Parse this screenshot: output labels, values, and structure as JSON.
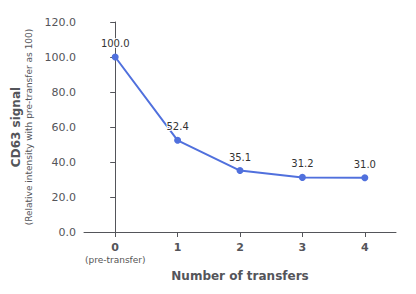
{
  "chart_data": {
    "type": "line",
    "x": [
      0,
      1,
      2,
      3,
      4
    ],
    "values": [
      100.0,
      52.4,
      35.1,
      31.2,
      31.0
    ],
    "value_labels": [
      "100.0",
      "52.4",
      "35.1",
      "31.2",
      "31.0"
    ],
    "data_labels": true,
    "marker": "circle",
    "xlabel": "Number of transfers",
    "ylabel": "CD63 signal",
    "ylabel_subtitle": "(Relative intensity with pre-transfer as 100)",
    "annotations": [
      {
        "text": "(pre-transfer)",
        "x": 0
      }
    ],
    "xlim": [
      -0.5,
      4.5
    ],
    "xticks": [
      0,
      1,
      2,
      3,
      4
    ],
    "ylim": [
      0.0,
      120.0
    ],
    "yticks": [
      {
        "value": 0,
        "label": "0.0"
      },
      {
        "value": 20,
        "label": "20.0"
      },
      {
        "value": 40,
        "label": "40.0"
      },
      {
        "value": 60,
        "label": "60.0"
      },
      {
        "value": 80,
        "label": "80.0"
      },
      {
        "value": 100,
        "label": "100.0"
      },
      {
        "value": 120,
        "label": "120.0"
      }
    ],
    "grid": false
  }
}
